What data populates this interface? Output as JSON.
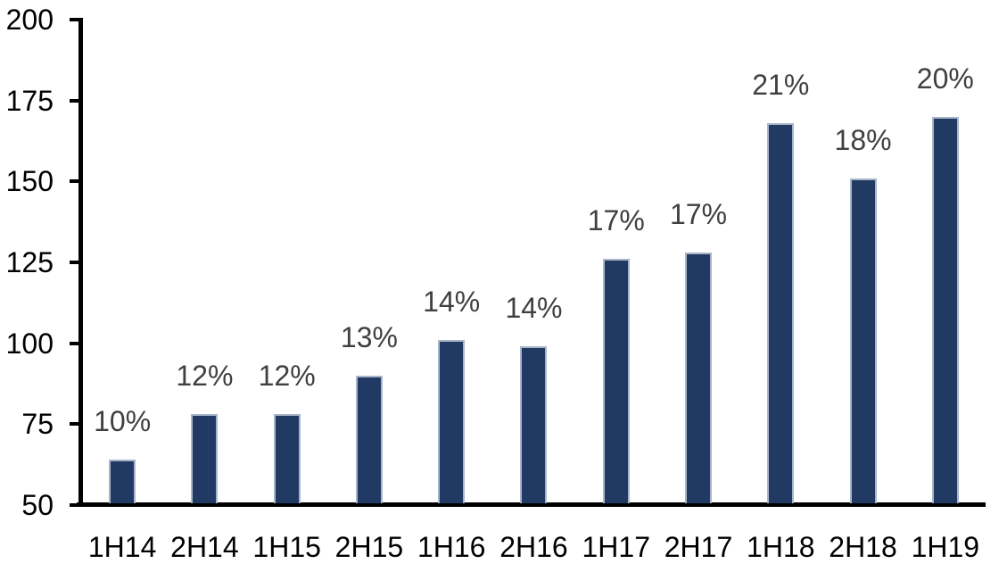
{
  "chart_data": {
    "type": "bar",
    "title": "",
    "xlabel": "",
    "ylabel": "",
    "categories": [
      "1H14",
      "2H14",
      "1H15",
      "2H15",
      "1H16",
      "2H16",
      "1H17",
      "2H17",
      "1H18",
      "2H18",
      "1H19"
    ],
    "values": [
      64,
      78,
      78,
      90,
      101,
      99,
      126,
      128,
      168,
      151,
      170
    ],
    "data_labels": [
      "10%",
      "12%",
      "12%",
      "13%",
      "14%",
      "14%",
      "17%",
      "17%",
      "21%",
      "18%",
      "20%"
    ],
    "ylim": [
      50,
      200
    ],
    "yticks": [
      200,
      175,
      150,
      125,
      100,
      75,
      50
    ],
    "grid": false,
    "legend": false,
    "colors": {
      "bar_fill": "#213a64",
      "bar_border": "#a9b6c9",
      "axis": "#000000",
      "axis_label_color": "#000000",
      "data_label_color": "#404040",
      "background": "#ffffff"
    }
  }
}
